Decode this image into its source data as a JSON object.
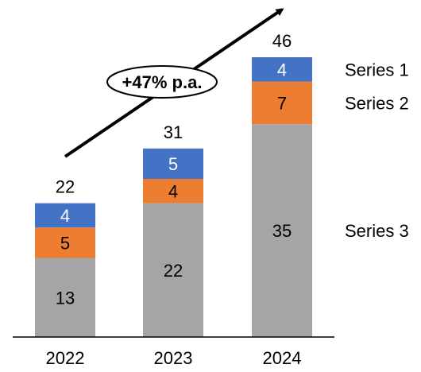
{
  "chart_data": {
    "type": "bar",
    "stacked": true,
    "categories": [
      "2022",
      "2023",
      "2024"
    ],
    "series": [
      {
        "name": "Series 3",
        "values": [
          13,
          22,
          35
        ],
        "color": "#a5a5a5"
      },
      {
        "name": "Series 2",
        "values": [
          5,
          4,
          7
        ],
        "color": "#ed7d31"
      },
      {
        "name": "Series 1",
        "values": [
          4,
          5,
          4
        ],
        "color": "#4472c4"
      }
    ],
    "totals": [
      22,
      31,
      46
    ],
    "annotation": "+47% p.a.",
    "ylim": [
      0,
      50
    ],
    "grid": false,
    "legend_position": "right"
  }
}
